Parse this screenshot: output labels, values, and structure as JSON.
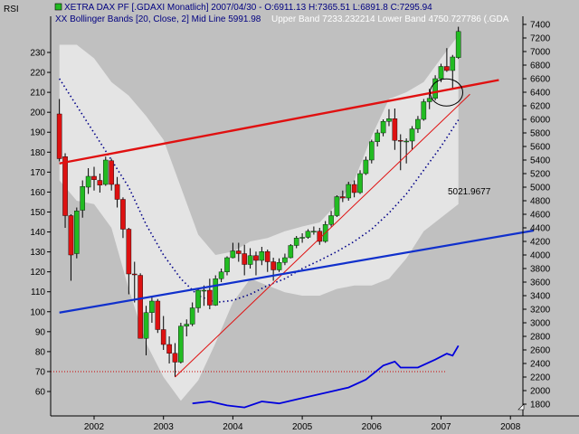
{
  "header": {
    "left_label": "RSI",
    "line1": "XETRA DAX PF [.GDAXI  Monatlich] 2007/04/30 - O:6911.13 H:7365.51 L:6891.8 C:7295.94",
    "line2_left": "XX Bollinger Bands [20, Close, 2] Mid Line 5991.98",
    "line2_right": "Upper Band 7233.232214 Lower Band 4750.727786  (.GDA"
  },
  "annotation": {
    "text": "5021.9677",
    "color": "#e01010"
  },
  "colors": {
    "background": "#c0c0c0",
    "band_fill": "#e4e4e4",
    "up_candle": "#22bb22",
    "down_candle": "#dd1111",
    "wick": "#000000",
    "mid_line": "#000088",
    "rsi_line": "#0000dd",
    "red_trendline": "#e01010",
    "blue_trendline": "#1030cc",
    "level_line": "#cc0000"
  },
  "chart_data": {
    "type": "candlestick",
    "title": "XETRA DAX PF [.GDAXI  Monatlich]",
    "x_axis": {
      "ticks": [
        "2002",
        "2003",
        "2004",
        "2005",
        "2006",
        "2007",
        "2008"
      ]
    },
    "y_axis_right": {
      "label": "",
      "ticks": [
        1800,
        2000,
        2200,
        2400,
        2600,
        2800,
        3000,
        3200,
        3400,
        3600,
        3800,
        4000,
        4200,
        4400,
        4600,
        4800,
        5000,
        5200,
        5400,
        5600,
        5800,
        6000,
        6200,
        6400,
        6600,
        6800,
        7000,
        7200,
        7400
      ],
      "ylim": [
        1750,
        7450
      ]
    },
    "y_axis_left": {
      "label": "RSI",
      "ticks": [
        60,
        70,
        80,
        90,
        100,
        110,
        120,
        130,
        140,
        150,
        160,
        170,
        180,
        190,
        200,
        210,
        220,
        230
      ]
    },
    "candles": [
      {
        "date": "2001-07",
        "o": 6080,
        "h": 6300,
        "l": 5380,
        "c": 5420
      },
      {
        "date": "2001-08",
        "o": 5450,
        "h": 5500,
        "l": 4400,
        "c": 4580
      },
      {
        "date": "2001-09",
        "o": 4580,
        "h": 4600,
        "l": 3620,
        "c": 4000
      },
      {
        "date": "2001-10",
        "o": 4020,
        "h": 4700,
        "l": 3950,
        "c": 4650
      },
      {
        "date": "2001-11",
        "o": 4660,
        "h": 5100,
        "l": 4550,
        "c": 5010
      },
      {
        "date": "2001-12",
        "o": 5000,
        "h": 5280,
        "l": 4900,
        "c": 5160
      },
      {
        "date": "2002-01",
        "o": 5160,
        "h": 5300,
        "l": 4950,
        "c": 5110
      },
      {
        "date": "2002-02",
        "o": 5100,
        "h": 5200,
        "l": 4920,
        "c": 5030
      },
      {
        "date": "2002-03",
        "o": 5040,
        "h": 5450,
        "l": 5020,
        "c": 5400
      },
      {
        "date": "2002-04",
        "o": 5390,
        "h": 5420,
        "l": 4950,
        "c": 5040
      },
      {
        "date": "2002-05",
        "o": 5040,
        "h": 5150,
        "l": 4700,
        "c": 4820
      },
      {
        "date": "2002-06",
        "o": 4820,
        "h": 4850,
        "l": 4250,
        "c": 4380
      },
      {
        "date": "2002-07",
        "o": 4380,
        "h": 4400,
        "l": 3420,
        "c": 3720
      },
      {
        "date": "2002-08",
        "o": 3720,
        "h": 3900,
        "l": 3300,
        "c": 3710
      },
      {
        "date": "2002-09",
        "o": 3700,
        "h": 3730,
        "l": 2800,
        "c": 2770
      },
      {
        "date": "2002-10",
        "o": 2770,
        "h": 3250,
        "l": 2520,
        "c": 3150
      },
      {
        "date": "2002-11",
        "o": 3150,
        "h": 3400,
        "l": 3000,
        "c": 3320
      },
      {
        "date": "2002-12",
        "o": 3320,
        "h": 3350,
        "l": 2850,
        "c": 2900
      },
      {
        "date": "2003-01",
        "o": 2900,
        "h": 3100,
        "l": 2600,
        "c": 2680
      },
      {
        "date": "2003-02",
        "o": 2680,
        "h": 2800,
        "l": 2400,
        "c": 2550
      },
      {
        "date": "2003-03",
        "o": 2550,
        "h": 2700,
        "l": 2200,
        "c": 2420
      },
      {
        "date": "2003-04",
        "o": 2420,
        "h": 3000,
        "l": 2400,
        "c": 2950
      },
      {
        "date": "2003-05",
        "o": 2950,
        "h": 3050,
        "l": 2800,
        "c": 2980
      },
      {
        "date": "2003-06",
        "o": 2980,
        "h": 3300,
        "l": 2950,
        "c": 3220
      },
      {
        "date": "2003-07",
        "o": 3220,
        "h": 3500,
        "l": 3150,
        "c": 3480
      },
      {
        "date": "2003-08",
        "o": 3480,
        "h": 3550,
        "l": 3250,
        "c": 3480
      },
      {
        "date": "2003-09",
        "o": 3480,
        "h": 3650,
        "l": 3200,
        "c": 3260
      },
      {
        "date": "2003-10",
        "o": 3260,
        "h": 3700,
        "l": 3250,
        "c": 3650
      },
      {
        "date": "2003-11",
        "o": 3650,
        "h": 3800,
        "l": 3600,
        "c": 3750
      },
      {
        "date": "2003-12",
        "o": 3750,
        "h": 3980,
        "l": 3700,
        "c": 3960
      },
      {
        "date": "2004-01",
        "o": 3960,
        "h": 4180,
        "l": 3950,
        "c": 4060
      },
      {
        "date": "2004-02",
        "o": 4060,
        "h": 4180,
        "l": 3900,
        "c": 4020
      },
      {
        "date": "2004-03",
        "o": 4020,
        "h": 4150,
        "l": 3700,
        "c": 3860
      },
      {
        "date": "2004-04",
        "o": 3860,
        "h": 4100,
        "l": 3800,
        "c": 3990
      },
      {
        "date": "2004-05",
        "o": 3990,
        "h": 4050,
        "l": 3700,
        "c": 3920
      },
      {
        "date": "2004-06",
        "o": 3920,
        "h": 4120,
        "l": 3850,
        "c": 4050
      },
      {
        "date": "2004-07",
        "o": 4050,
        "h": 4080,
        "l": 3750,
        "c": 3900
      },
      {
        "date": "2004-08",
        "o": 3900,
        "h": 3960,
        "l": 3620,
        "c": 3780
      },
      {
        "date": "2004-09",
        "o": 3780,
        "h": 3950,
        "l": 3750,
        "c": 3890
      },
      {
        "date": "2004-10",
        "o": 3890,
        "h": 4020,
        "l": 3850,
        "c": 3960
      },
      {
        "date": "2004-11",
        "o": 3960,
        "h": 4160,
        "l": 3950,
        "c": 4140
      },
      {
        "date": "2004-12",
        "o": 4140,
        "h": 4280,
        "l": 4100,
        "c": 4250
      },
      {
        "date": "2005-01",
        "o": 4250,
        "h": 4320,
        "l": 4180,
        "c": 4260
      },
      {
        "date": "2005-02",
        "o": 4260,
        "h": 4380,
        "l": 4240,
        "c": 4350
      },
      {
        "date": "2005-03",
        "o": 4350,
        "h": 4420,
        "l": 4300,
        "c": 4350
      },
      {
        "date": "2005-04",
        "o": 4350,
        "h": 4400,
        "l": 4150,
        "c": 4200
      },
      {
        "date": "2005-05",
        "o": 4200,
        "h": 4500,
        "l": 4180,
        "c": 4450
      },
      {
        "date": "2005-06",
        "o": 4450,
        "h": 4650,
        "l": 4420,
        "c": 4580
      },
      {
        "date": "2005-07",
        "o": 4580,
        "h": 4880,
        "l": 4560,
        "c": 4860
      },
      {
        "date": "2005-08",
        "o": 4860,
        "h": 4950,
        "l": 4780,
        "c": 4840
      },
      {
        "date": "2005-09",
        "o": 4840,
        "h": 5080,
        "l": 4800,
        "c": 5040
      },
      {
        "date": "2005-10",
        "o": 5040,
        "h": 5100,
        "l": 4850,
        "c": 4920
      },
      {
        "date": "2005-11",
        "o": 4920,
        "h": 5250,
        "l": 4900,
        "c": 5200
      },
      {
        "date": "2005-12",
        "o": 5200,
        "h": 5450,
        "l": 5180,
        "c": 5400
      },
      {
        "date": "2006-01",
        "o": 5400,
        "h": 5700,
        "l": 5350,
        "c": 5670
      },
      {
        "date": "2006-02",
        "o": 5670,
        "h": 5850,
        "l": 5600,
        "c": 5800
      },
      {
        "date": "2006-03",
        "o": 5800,
        "h": 6000,
        "l": 5750,
        "c": 5970
      },
      {
        "date": "2006-04",
        "o": 5970,
        "h": 6150,
        "l": 5900,
        "c": 6010
      },
      {
        "date": "2006-05",
        "o": 6010,
        "h": 6160,
        "l": 5550,
        "c": 5690
      },
      {
        "date": "2006-06",
        "o": 5690,
        "h": 5780,
        "l": 5250,
        "c": 5680
      },
      {
        "date": "2006-07",
        "o": 5680,
        "h": 5720,
        "l": 5350,
        "c": 5680
      },
      {
        "date": "2006-08",
        "o": 5680,
        "h": 5900,
        "l": 5550,
        "c": 5860
      },
      {
        "date": "2006-09",
        "o": 5860,
        "h": 6050,
        "l": 5800,
        "c": 6000
      },
      {
        "date": "2006-10",
        "o": 6000,
        "h": 6300,
        "l": 5980,
        "c": 6260
      },
      {
        "date": "2006-11",
        "o": 6260,
        "h": 6450,
        "l": 6150,
        "c": 6310
      },
      {
        "date": "2006-12",
        "o": 6310,
        "h": 6650,
        "l": 6280,
        "c": 6600
      },
      {
        "date": "2007-01",
        "o": 6600,
        "h": 6820,
        "l": 6550,
        "c": 6780
      },
      {
        "date": "2007-02",
        "o": 6780,
        "h": 7050,
        "l": 6700,
        "c": 6720
      },
      {
        "date": "2007-03",
        "o": 6720,
        "h": 6950,
        "l": 6440,
        "c": 6920
      },
      {
        "date": "2007-04",
        "o": 6911.13,
        "h": 7365.51,
        "l": 6891.8,
        "c": 7295.94
      }
    ],
    "bollinger": {
      "period": 20,
      "stddev": 2,
      "mid_line_last": 5991.98,
      "upper_band_last": 7233.232214,
      "lower_band_last": 4750.727786,
      "upper": [
        [
          "2001-07",
          7100
        ],
        [
          "2001-10",
          7100
        ],
        [
          "2002-01",
          6900
        ],
        [
          "2002-04",
          6550
        ],
        [
          "2002-07",
          6350
        ],
        [
          "2002-10",
          6050
        ],
        [
          "2003-01",
          5700
        ],
        [
          "2003-04",
          5000
        ],
        [
          "2003-07",
          4300
        ],
        [
          "2003-10",
          4000
        ],
        [
          "2004-01",
          4050
        ],
        [
          "2004-04",
          4200
        ],
        [
          "2004-07",
          4250
        ],
        [
          "2004-10",
          4350
        ],
        [
          "2005-01",
          4420
        ],
        [
          "2005-04",
          4480
        ],
        [
          "2005-07",
          4750
        ],
        [
          "2005-10",
          5100
        ],
        [
          "2006-01",
          5750
        ],
        [
          "2006-04",
          6300
        ],
        [
          "2006-07",
          6400
        ],
        [
          "2006-10",
          6550
        ],
        [
          "2007-01",
          6900
        ],
        [
          "2007-04",
          7240
        ]
      ],
      "lower": [
        [
          "2001-07",
          5100
        ],
        [
          "2001-10",
          4800
        ],
        [
          "2002-01",
          4750
        ],
        [
          "2002-04",
          4400
        ],
        [
          "2002-07",
          3500
        ],
        [
          "2002-10",
          2700
        ],
        [
          "2003-01",
          2200
        ],
        [
          "2003-04",
          1850
        ],
        [
          "2003-07",
          2150
        ],
        [
          "2003-10",
          2700
        ],
        [
          "2004-01",
          3300
        ],
        [
          "2004-04",
          3650
        ],
        [
          "2004-07",
          3550
        ],
        [
          "2004-10",
          3450
        ],
        [
          "2005-01",
          3400
        ],
        [
          "2005-04",
          3400
        ],
        [
          "2005-07",
          3500
        ],
        [
          "2005-10",
          3550
        ],
        [
          "2006-01",
          3550
        ],
        [
          "2006-04",
          3650
        ],
        [
          "2006-07",
          3950
        ],
        [
          "2006-10",
          4350
        ],
        [
          "2007-01",
          4550
        ],
        [
          "2007-04",
          4750
        ]
      ],
      "mid": [
        [
          "2001-07",
          6600
        ],
        [
          "2001-10",
          6200
        ],
        [
          "2002-01",
          5800
        ],
        [
          "2002-04",
          5400
        ],
        [
          "2002-07",
          5000
        ],
        [
          "2002-10",
          4450
        ],
        [
          "2003-01",
          4000
        ],
        [
          "2003-04",
          3650
        ],
        [
          "2003-07",
          3400
        ],
        [
          "2003-10",
          3300
        ],
        [
          "2004-01",
          3330
        ],
        [
          "2004-04",
          3420
        ],
        [
          "2004-07",
          3550
        ],
        [
          "2004-10",
          3650
        ],
        [
          "2005-01",
          3800
        ],
        [
          "2005-04",
          3920
        ],
        [
          "2005-07",
          4050
        ],
        [
          "2005-10",
          4200
        ],
        [
          "2006-01",
          4380
        ],
        [
          "2006-04",
          4620
        ],
        [
          "2006-07",
          4900
        ],
        [
          "2006-10",
          5250
        ],
        [
          "2007-01",
          5600
        ],
        [
          "2007-04",
          5991.98
        ]
      ]
    },
    "rsi": {
      "level_line": 70,
      "values": [
        [
          "2003-06",
          54
        ],
        [
          "2003-09",
          55
        ],
        [
          "2003-12",
          53
        ],
        [
          "2004-03",
          52
        ],
        [
          "2004-06",
          55
        ],
        [
          "2004-09",
          54
        ],
        [
          "2004-12",
          56
        ],
        [
          "2005-03",
          58
        ],
        [
          "2005-06",
          60
        ],
        [
          "2005-09",
          62
        ],
        [
          "2005-12",
          66
        ],
        [
          "2006-03",
          73
        ],
        [
          "2006-05",
          75
        ],
        [
          "2006-06",
          72
        ],
        [
          "2006-09",
          72
        ],
        [
          "2006-12",
          76
        ],
        [
          "2007-02",
          79
        ],
        [
          "2007-03",
          78
        ],
        [
          "2007-04",
          83
        ]
      ]
    },
    "trendlines": [
      {
        "name": "red",
        "from": [
          "2001-07",
          5350
        ],
        "to": [
          "2007-11",
          6580
        ]
      },
      {
        "name": "thin-red",
        "from": [
          "2003-03",
          2200
        ],
        "to": [
          "2007-06",
          6370
        ]
      },
      {
        "name": "blue",
        "from": [
          "2001-07",
          3150
        ],
        "to": [
          "2008-05",
          4360
        ]
      }
    ],
    "highlight_ellipse_center": [
      "2007-01",
      6450
    ],
    "grid": false
  }
}
